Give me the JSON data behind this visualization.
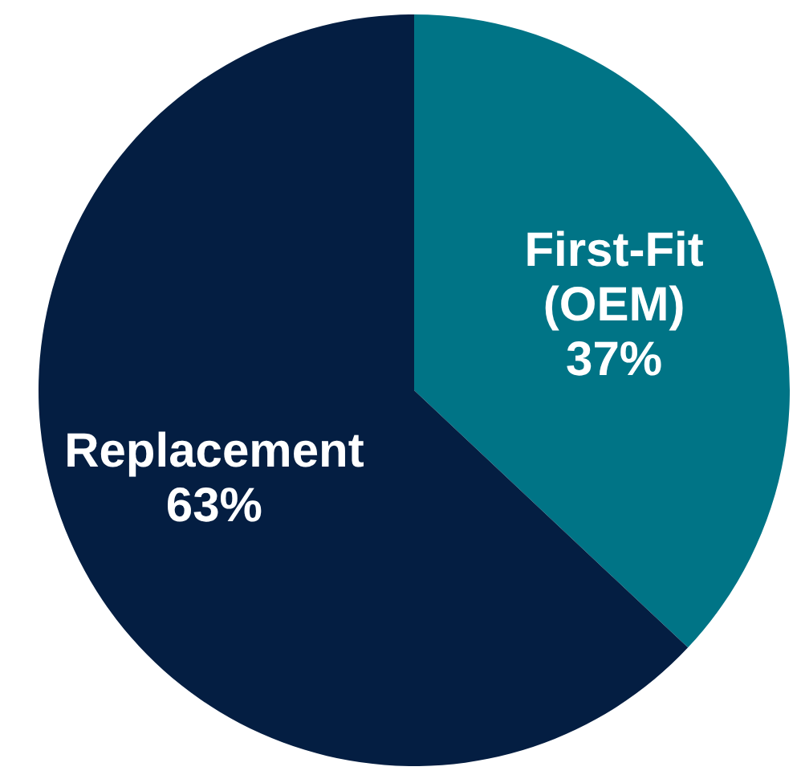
{
  "chart_data": {
    "type": "pie",
    "categories": [
      "First-Fit (OEM)",
      "Replacement"
    ],
    "values": [
      37,
      63
    ],
    "colors": [
      "#007486",
      "#041e42"
    ],
    "value_labels": [
      "37%",
      "63%"
    ]
  }
}
